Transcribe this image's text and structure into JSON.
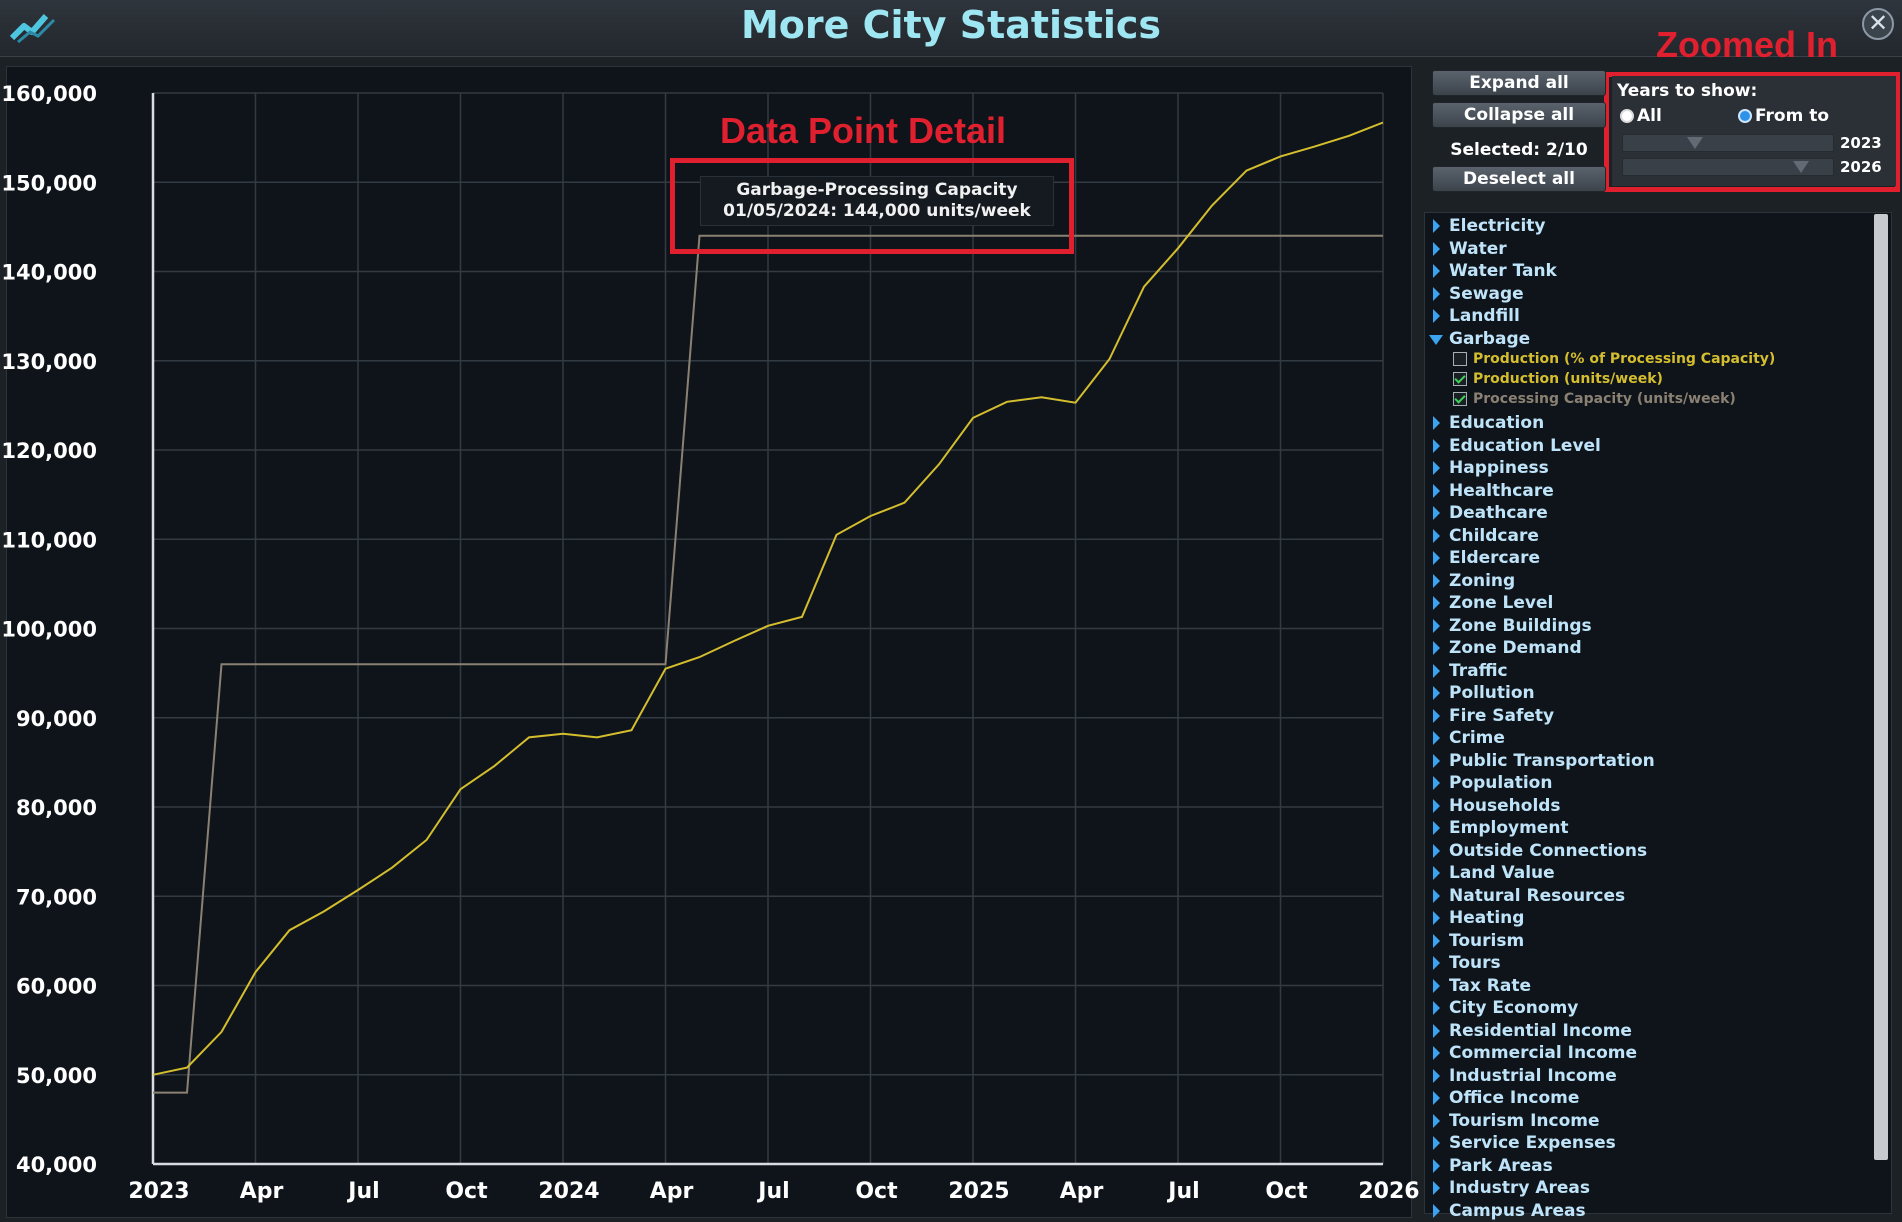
{
  "window": {
    "title": "More City Statistics",
    "close_glyph": "✕"
  },
  "annotations": {
    "data_point_detail": "Data Point Detail",
    "zoomed_in": "Zoomed In"
  },
  "tooltip": {
    "line1": "Garbage-Processing Capacity",
    "line2": "01/05/2024:  144,000 units/week"
  },
  "controls": {
    "expand_all": "Expand all",
    "collapse_all": "Collapse all",
    "selected": "Selected: 2/10",
    "deselect_all": "Deselect all",
    "years_label": "Years to show:",
    "radio_all": "All",
    "radio_from_to": "From to",
    "from_to_selected": true,
    "from_year": "2023",
    "to_year": "2026"
  },
  "tree": {
    "items_before": [
      "Electricity",
      "Water",
      "Water Tank",
      "Sewage",
      "Landfill"
    ],
    "expanded": {
      "label": "Garbage",
      "children": [
        {
          "label": "Production (% of Processing Capacity)",
          "checked": false,
          "color": "#d4be2e"
        },
        {
          "label": "Production (units/week)",
          "checked": true,
          "color": "#d4be2e"
        },
        {
          "label": "Processing Capacity (units/week)",
          "checked": true,
          "color": "#8a8173"
        }
      ]
    },
    "items_after": [
      "Education",
      "Education Level",
      "Happiness",
      "Healthcare",
      "Deathcare",
      "Childcare",
      "Eldercare",
      "Zoning",
      "Zone Level",
      "Zone Buildings",
      "Zone Demand",
      "Traffic",
      "Pollution",
      "Fire Safety",
      "Crime",
      "Public Transportation",
      "Population",
      "Households",
      "Employment",
      "Outside Connections",
      "Land Value",
      "Natural Resources",
      "Heating",
      "Tourism",
      "Tours",
      "Tax Rate",
      "City Economy",
      "Residential Income",
      "Commercial Income",
      "Industrial Income",
      "Office Income",
      "Tourism Income",
      "Service Expenses",
      "Park Areas",
      "Industry Areas",
      "Campus Areas"
    ]
  },
  "chart_data": {
    "type": "line",
    "y_ticks": [
      "160,000",
      "150,000",
      "140,000",
      "130,000",
      "120,000",
      "110,000",
      "100,000",
      "90,000",
      "80,000",
      "70,000",
      "60,000",
      "50,000",
      "40,000"
    ],
    "x_ticks": [
      "2023",
      "Apr",
      "Jul",
      "Oct",
      "2024",
      "Apr",
      "Jul",
      "Oct",
      "2025",
      "Apr",
      "Jul",
      "Oct",
      "2026"
    ],
    "ylim": [
      40000,
      160000
    ],
    "xlim": [
      2023.0,
      2026.0
    ],
    "grid": true,
    "series": [
      {
        "name": "Production (units/week)",
        "color": "#d4be2e",
        "x": [
          2023.0,
          2023.083,
          2023.167,
          2023.25,
          2023.333,
          2023.417,
          2023.5,
          2023.583,
          2023.667,
          2023.75,
          2023.833,
          2023.917,
          2024.0,
          2024.083,
          2024.167,
          2024.25,
          2024.333,
          2024.417,
          2024.5,
          2024.583,
          2024.667,
          2024.75,
          2024.833,
          2024.917,
          2025.0,
          2025.083,
          2025.167,
          2025.25,
          2025.333,
          2025.417,
          2025.5,
          2025.583,
          2025.667,
          2025.75,
          2025.833,
          2025.917,
          2026.0
        ],
        "values": [
          50000,
          50800,
          54800,
          61500,
          66200,
          68300,
          70700,
          73200,
          76300,
          82000,
          84600,
          87800,
          88200,
          87800,
          88600,
          95500,
          96800,
          98600,
          100300,
          101300,
          110500,
          112600,
          114100,
          118400,
          123600,
          125400,
          125900,
          125300,
          130200,
          138300,
          142600,
          147400,
          151300,
          152900,
          154000,
          155200,
          156700
        ]
      },
      {
        "name": "Processing Capacity (units/week)",
        "color": "#8a8173",
        "x": [
          2023.0,
          2023.083,
          2023.167,
          2023.5,
          2024.0,
          2024.25,
          2024.333,
          2024.5,
          2025.0,
          2025.5,
          2026.0
        ],
        "values": [
          48000,
          48000,
          96000,
          96000,
          96000,
          96000,
          144000,
          144000,
          144000,
          144000,
          144000
        ]
      }
    ]
  }
}
